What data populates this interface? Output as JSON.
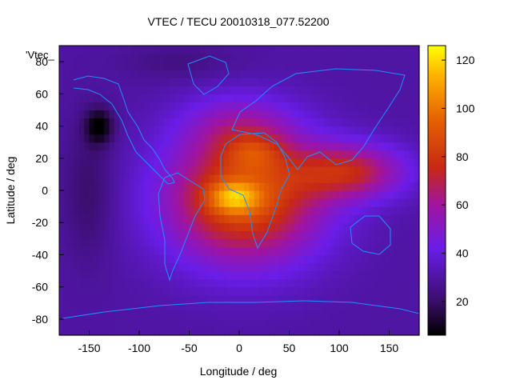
{
  "chart_data": {
    "type": "heatmap",
    "title": "VTEC / TECU 20010318_077.52200",
    "xlabel": "Longitude / deg",
    "ylabel": "Latitude / deg",
    "xlim": [
      -180,
      180
    ],
    "ylim": [
      -90,
      90
    ],
    "x_ticks": [
      -150,
      -100,
      -50,
      0,
      50,
      100,
      150
    ],
    "y_ticks": [
      -80,
      -60,
      -40,
      -20,
      0,
      20,
      40,
      60,
      80
    ],
    "colorbar": {
      "range": [
        6,
        126
      ],
      "ticks": [
        20,
        40,
        60,
        80,
        100,
        120
      ],
      "palette": "black-purple-red-orange-yellow"
    },
    "legend_key": "'Vtec_",
    "peaks": [
      {
        "lon": -5,
        "lat": -4,
        "value": 122
      },
      {
        "lon": 15,
        "lat": 24,
        "value": 100
      },
      {
        "lon": 120,
        "lat": 14,
        "value": 75
      },
      {
        "lon": -140,
        "lat": 40,
        "value": 6
      }
    ]
  }
}
